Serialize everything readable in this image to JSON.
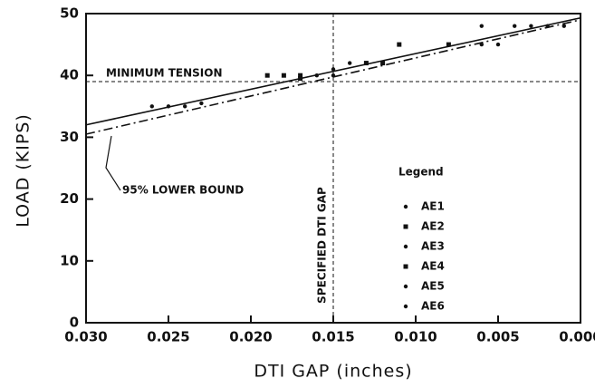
{
  "chart_data": {
    "type": "scatter",
    "xlabel": "DTI GAP (inches)",
    "ylabel": "LOAD (KIPS)",
    "xlim": [
      0.03,
      0
    ],
    "ylim": [
      0,
      50
    ],
    "xticks": [
      {
        "value": 0.03,
        "label": "0.030"
      },
      {
        "value": 0.025,
        "label": "0.025"
      },
      {
        "value": 0.02,
        "label": "0.020"
      },
      {
        "value": 0.015,
        "label": "0.015"
      },
      {
        "value": 0.01,
        "label": "0.010"
      },
      {
        "value": 0.005,
        "label": "0.005"
      },
      {
        "value": 0,
        "label": "0.000"
      }
    ],
    "yticks": [
      0,
      10,
      20,
      30,
      40,
      50
    ],
    "legend_title": "Legend",
    "series": [
      {
        "name": "AE1",
        "color": "#111111",
        "marker": "circle",
        "x": [
          0.026,
          0.025,
          0.024,
          0.023
        ],
        "values": [
          35,
          35,
          35,
          35.5
        ]
      },
      {
        "name": "AE2",
        "color": "#111111",
        "marker": "square",
        "x": [
          0.019,
          0.018,
          0.017,
          0.017
        ],
        "values": [
          40,
          40,
          40,
          39.5
        ]
      },
      {
        "name": "AE3",
        "color": "#111111",
        "marker": "circle",
        "x": [
          0.016,
          0.015,
          0.015,
          0.014
        ],
        "values": [
          40,
          41,
          40,
          42
        ]
      },
      {
        "name": "AE4",
        "color": "#111111",
        "marker": "square",
        "x": [
          0.013,
          0.012,
          0.011,
          0.008
        ],
        "values": [
          42,
          42,
          45,
          45
        ]
      },
      {
        "name": "AE5",
        "color": "#111111",
        "marker": "circle",
        "x": [
          0.006,
          0.006,
          0.005,
          0.004
        ],
        "values": [
          45,
          48,
          45,
          48
        ]
      },
      {
        "name": "AE6",
        "color": "#111111",
        "marker": "circle",
        "x": [
          0.003,
          0.002,
          0.001
        ],
        "values": [
          48,
          48,
          48
        ]
      }
    ],
    "fit_line": {
      "x": [
        0.03,
        0
      ],
      "y": [
        32,
        49.3
      ]
    },
    "lower_bound": {
      "label": "95% LOWER BOUND",
      "x": [
        0.03,
        0
      ],
      "y": [
        30.5,
        49
      ]
    },
    "minimum_tension": {
      "label": "MINIMUM TENSION",
      "value": 39
    },
    "specified_gap": {
      "label": "SPECIFIED DTI GAP",
      "value": 0.015
    }
  }
}
